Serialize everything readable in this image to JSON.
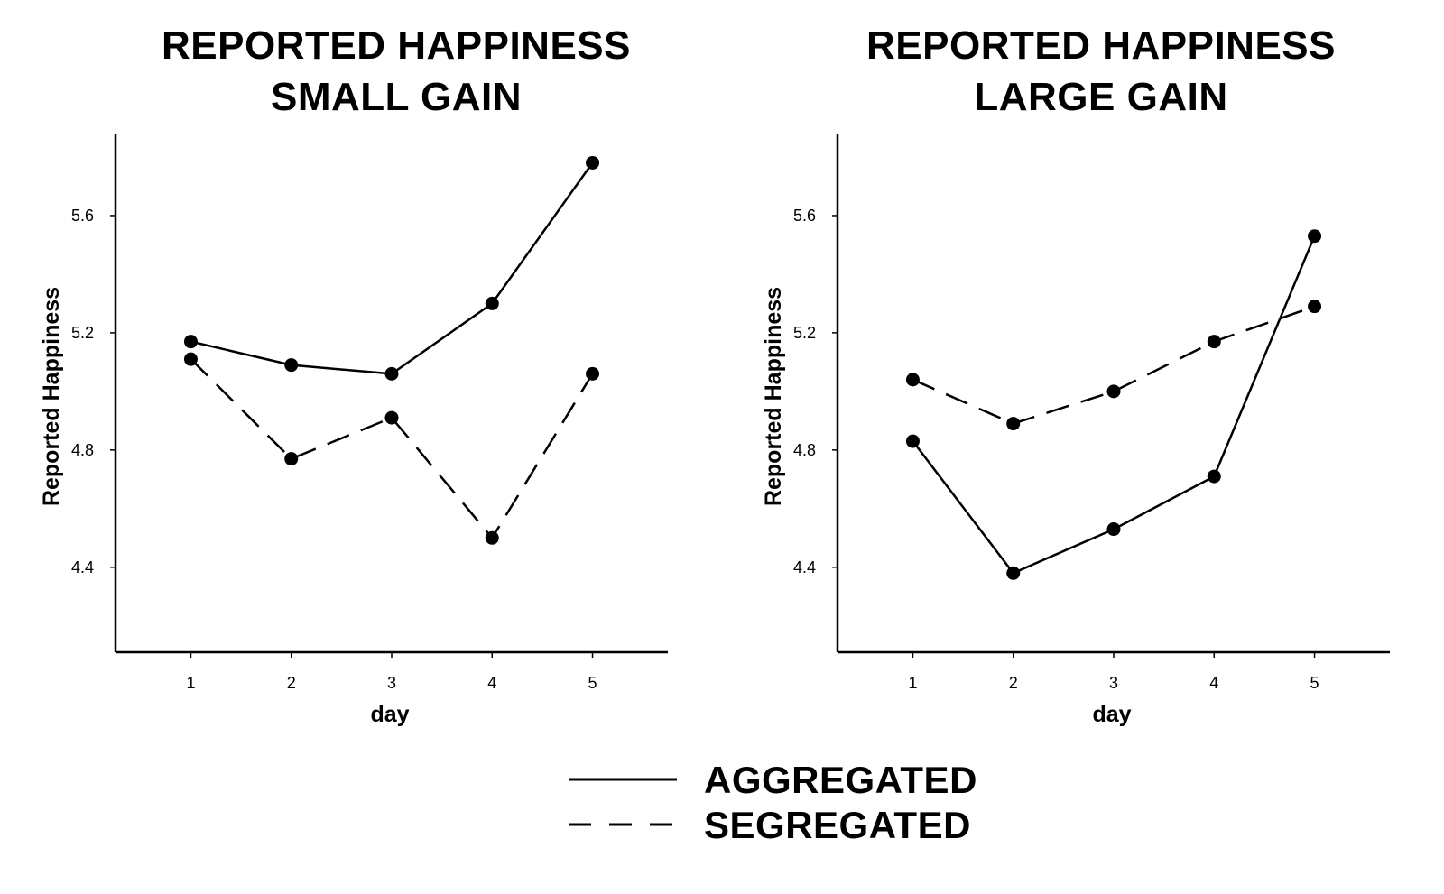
{
  "legend": {
    "aggregated": "AGGREGATED",
    "segregated": "SEGREGATED"
  },
  "chart_data": [
    {
      "type": "line",
      "title": [
        "REPORTED HAPPINESS",
        "SMALL GAIN"
      ],
      "xlabel": "day",
      "ylabel": "Reported Happiness",
      "x": [
        1,
        2,
        3,
        4,
        5
      ],
      "x_ticks": [
        "1",
        "2",
        "3",
        "4",
        "5"
      ],
      "y_ticks": [
        "4.4",
        "4.8",
        "5.2",
        "5.6"
      ],
      "y_tick_values": [
        4.4,
        4.8,
        5.2,
        5.6
      ],
      "xlim": [
        0.25,
        5.75
      ],
      "ylim": [
        4.11,
        5.88
      ],
      "grid": false,
      "series": [
        {
          "name": "AGGREGATED",
          "style": "solid",
          "values": [
            5.17,
            5.09,
            5.06,
            5.3,
            5.78
          ]
        },
        {
          "name": "SEGREGATED",
          "style": "dashed",
          "values": [
            5.11,
            4.77,
            4.91,
            4.5,
            5.06
          ]
        }
      ]
    },
    {
      "type": "line",
      "title": [
        "REPORTED HAPPINESS",
        "LARGE GAIN"
      ],
      "xlabel": "day",
      "ylabel": "Reported Happiness",
      "x": [
        1,
        2,
        3,
        4,
        5
      ],
      "x_ticks": [
        "1",
        "2",
        "3",
        "4",
        "5"
      ],
      "y_ticks": [
        "4.4",
        "4.8",
        "5.2",
        "5.6"
      ],
      "y_tick_values": [
        4.4,
        4.8,
        5.2,
        5.6
      ],
      "xlim": [
        0.25,
        5.75
      ],
      "ylim": [
        4.11,
        5.88
      ],
      "grid": false,
      "series": [
        {
          "name": "AGGREGATED",
          "style": "solid",
          "values": [
            4.83,
            4.38,
            4.53,
            4.71,
            5.53
          ]
        },
        {
          "name": "SEGREGATED",
          "style": "dashed",
          "values": [
            5.04,
            4.89,
            5.0,
            5.17,
            5.29
          ]
        }
      ]
    }
  ]
}
